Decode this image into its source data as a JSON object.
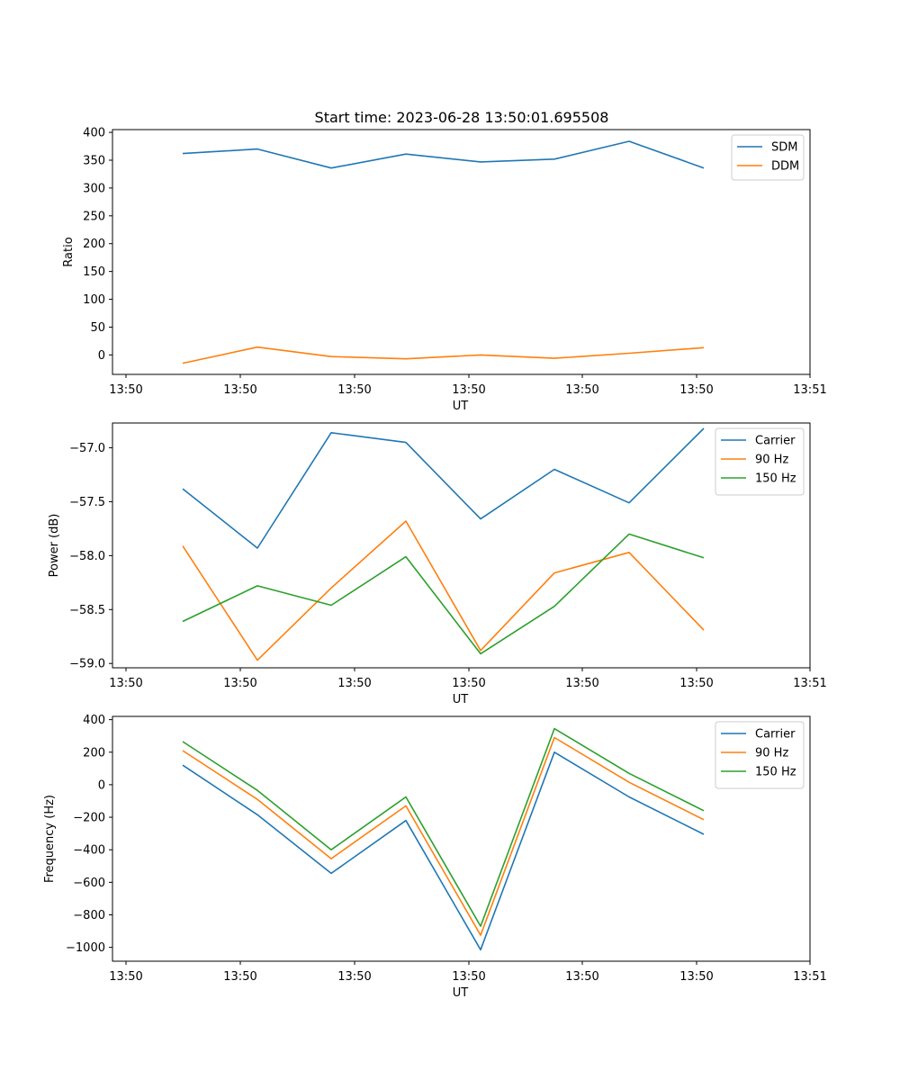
{
  "figure": {
    "title": "Start time: 2023-06-28 13:50:01.695508"
  },
  "chart_data": [
    {
      "type": "line",
      "xlabel": "UT",
      "ylabel": "Ratio",
      "x_ticks": [
        "13:50",
        "13:50",
        "13:50",
        "13:50",
        "13:50",
        "13:50",
        "13:51"
      ],
      "y_ticks": [
        "0",
        "50",
        "100",
        "150",
        "200",
        "250",
        "300",
        "350",
        "400"
      ],
      "ylim": [
        -35,
        405
      ],
      "legend_position": "upper-right",
      "x": [
        1,
        2,
        3,
        4,
        5,
        6,
        7,
        8
      ],
      "series": [
        {
          "name": "SDM",
          "color": "#1f77b4",
          "values": [
            362,
            370,
            336,
            361,
            347,
            352,
            384,
            336
          ]
        },
        {
          "name": "DDM",
          "color": "#ff7f0e",
          "values": [
            -15,
            14,
            -3,
            -7,
            0,
            -6,
            3,
            13
          ]
        }
      ]
    },
    {
      "type": "line",
      "xlabel": "UT",
      "ylabel": "Power (dB)",
      "x_ticks": [
        "13:50",
        "13:50",
        "13:50",
        "13:50",
        "13:50",
        "13:50",
        "13:51"
      ],
      "y_ticks": [
        "−59.0",
        "−58.5",
        "−58.0",
        "−57.5",
        "−57.0"
      ],
      "ylim": [
        -59.04,
        -56.77
      ],
      "legend_position": "upper-right",
      "x": [
        1,
        2,
        3,
        4,
        5,
        6,
        7,
        8
      ],
      "series": [
        {
          "name": "Carrier",
          "color": "#1f77b4",
          "values": [
            -57.38,
            -57.93,
            -56.86,
            -56.95,
            -57.66,
            -57.2,
            -57.51,
            -56.82
          ]
        },
        {
          "name": "90 Hz",
          "color": "#ff7f0e",
          "values": [
            -57.91,
            -58.97,
            -58.3,
            -57.68,
            -58.88,
            -58.16,
            -57.97,
            -58.69
          ]
        },
        {
          "name": "150 Hz",
          "color": "#2ca02c",
          "values": [
            -58.61,
            -58.28,
            -58.46,
            -58.01,
            -58.91,
            -58.47,
            -57.8,
            -58.02
          ]
        }
      ]
    },
    {
      "type": "line",
      "xlabel": "UT",
      "ylabel": "Frequency (Hz)",
      "x_ticks": [
        "13:50",
        "13:50",
        "13:50",
        "13:50",
        "13:50",
        "13:50",
        "13:51"
      ],
      "y_ticks": [
        "−1000",
        "−800",
        "−600",
        "−400",
        "−200",
        "0",
        "200",
        "400"
      ],
      "ylim": [
        -1085,
        420
      ],
      "legend_position": "upper-right",
      "x": [
        1,
        2,
        3,
        4,
        5,
        6,
        7,
        8
      ],
      "series": [
        {
          "name": "Carrier",
          "color": "#1f77b4",
          "values": [
            120,
            -185,
            -545,
            -220,
            -1015,
            200,
            -75,
            -305
          ]
        },
        {
          "name": "90 Hz",
          "color": "#ff7f0e",
          "values": [
            210,
            -90,
            -455,
            -130,
            -925,
            290,
            15,
            -215
          ]
        },
        {
          "name": "150 Hz",
          "color": "#2ca02c",
          "values": [
            265,
            -35,
            -400,
            -75,
            -870,
            345,
            70,
            -160
          ]
        }
      ]
    }
  ]
}
